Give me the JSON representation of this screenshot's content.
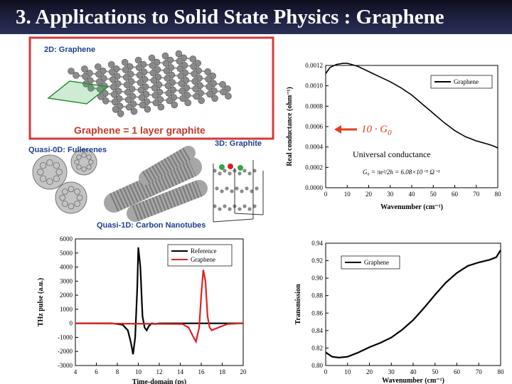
{
  "slide": {
    "title": "3. Applications to Solid State Physics : Graphene"
  },
  "illustration": {
    "graphene_label": "2D: Graphene",
    "caption": "Graphene = 1 layer graphite",
    "fullerene_label": "Quasi-0D: Fullerenes",
    "graphite_label": "3D: Graphite",
    "nanotube_label": "Quasi-1D: Carbon Nanotubes",
    "colors": {
      "frame": "#d63a3a",
      "caption": "#c0392b",
      "label": "#1f3f8f",
      "atom": "#8a8a8a"
    }
  },
  "annotation": {
    "g0_label": "10 · G",
    "g0_sub": "0",
    "universal": "Universal conductance",
    "formula": "G₀ = πe²/2h = 6.08×10⁻⁵ Ω⁻¹",
    "arrow_color": "#e0401c"
  },
  "chart_data": [
    {
      "type": "line",
      "id": "conductance",
      "xlabel": "Wavenumber (cm⁻¹)",
      "ylabel": "Real conductance (ohm⁻¹)",
      "xlim": [
        0,
        80
      ],
      "ylim": [
        0,
        0.0012
      ],
      "xticks": [
        "0",
        "10",
        "20",
        "30",
        "40",
        "50",
        "60",
        "70",
        "80"
      ],
      "yticks": [
        "0.0000",
        "0.0002",
        "0.0004",
        "0.0006",
        "0.0008",
        "0.0010",
        "0.0012"
      ],
      "legend": "top-right",
      "series": [
        {
          "name": "Graphene",
          "color": "#000000",
          "x": [
            0,
            2,
            5,
            8,
            10,
            12,
            15,
            20,
            25,
            30,
            35,
            40,
            45,
            50,
            55,
            60,
            65,
            70,
            75,
            78,
            80
          ],
          "y": [
            0.00112,
            0.00118,
            0.00121,
            0.00122,
            0.00122,
            0.00121,
            0.00119,
            0.00114,
            0.00109,
            0.00104,
            0.00098,
            0.00091,
            0.00082,
            0.00073,
            0.00064,
            0.00056,
            0.0005,
            0.00046,
            0.00043,
            0.00041,
            0.00039
          ]
        }
      ]
    },
    {
      "type": "line",
      "id": "thz-pulse",
      "xlabel": "Time-domain (ps)",
      "ylabel": "THz pulse (a.u.)",
      "xlim": [
        4,
        20
      ],
      "ylim": [
        -3000,
        6000
      ],
      "xticks": [
        "4",
        "6",
        "8",
        "10",
        "12",
        "14",
        "16",
        "18",
        "20"
      ],
      "yticks": [
        "-3000",
        "-2000",
        "-1000",
        "0",
        "1000",
        "2000",
        "3000",
        "4000",
        "5000",
        "6000"
      ],
      "legend": "top-right",
      "series": [
        {
          "name": "Reference",
          "color": "#000000",
          "x": [
            4,
            7.5,
            8.5,
            9.0,
            9.3,
            9.5,
            9.7,
            9.9,
            10.0,
            10.2,
            10.4,
            10.6,
            10.8,
            11.0,
            11.3,
            11.6,
            12,
            14,
            20
          ],
          "y": [
            0,
            0,
            -100,
            -500,
            -1400,
            -2200,
            -1000,
            2500,
            5400,
            4000,
            500,
            -300,
            -500,
            -200,
            0,
            -50,
            0,
            0,
            0
          ]
        },
        {
          "name": "Graphene",
          "color": "#e02020",
          "x": [
            4,
            14.2,
            14.8,
            15.2,
            15.5,
            15.8,
            16.0,
            16.2,
            16.4,
            16.6,
            16.8,
            17.0,
            17.3,
            17.8,
            18.5,
            20
          ],
          "y": [
            0,
            -50,
            -300,
            -900,
            -1300,
            -300,
            2000,
            3800,
            3000,
            500,
            -300,
            -500,
            -400,
            -250,
            -50,
            0
          ]
        }
      ]
    },
    {
      "type": "line",
      "id": "transmission",
      "xlabel": "Wavenumber (cm⁻¹)",
      "ylabel": "Transmission",
      "xlim": [
        0,
        80
      ],
      "ylim": [
        0.8,
        0.94
      ],
      "xticks": [
        "0",
        "10",
        "20",
        "30",
        "40",
        "50",
        "60",
        "70",
        "80"
      ],
      "yticks": [
        "0.80",
        "0.82",
        "0.84",
        "0.86",
        "0.88",
        "0.90",
        "0.92",
        "0.94"
      ],
      "legend": "top-left",
      "series": [
        {
          "name": "Graphene",
          "color": "#000000",
          "x": [
            0,
            3,
            6,
            10,
            15,
            20,
            25,
            30,
            35,
            40,
            45,
            50,
            55,
            60,
            65,
            70,
            75,
            78,
            80
          ],
          "y": [
            0.815,
            0.81,
            0.809,
            0.81,
            0.815,
            0.821,
            0.826,
            0.832,
            0.841,
            0.852,
            0.866,
            0.881,
            0.895,
            0.906,
            0.914,
            0.918,
            0.921,
            0.924,
            0.932
          ]
        }
      ]
    }
  ]
}
